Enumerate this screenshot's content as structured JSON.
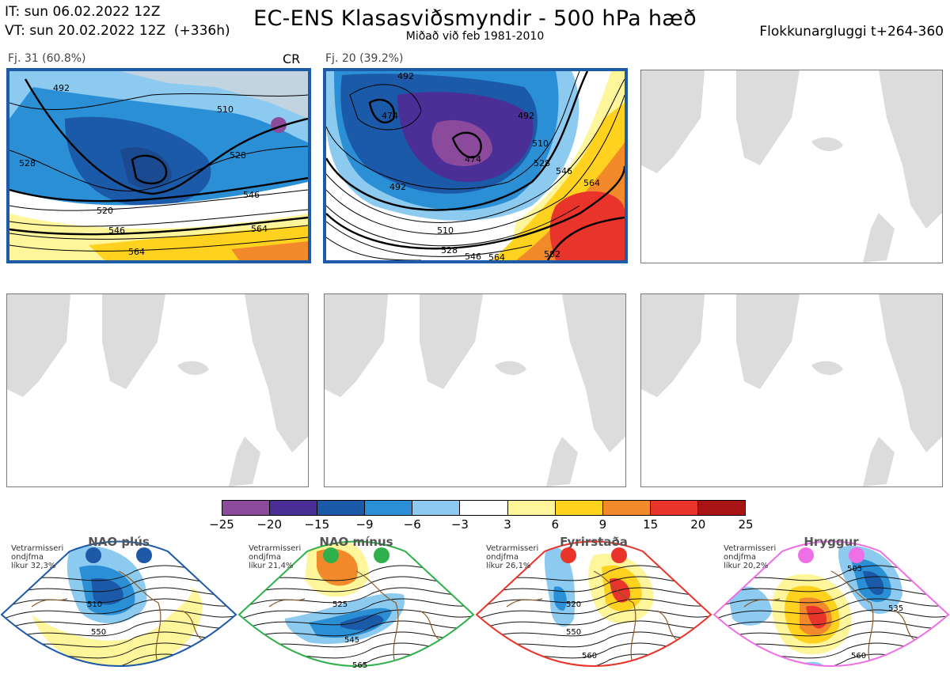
{
  "header": {
    "it": "IT: sun 06.02.2022 12Z",
    "vt": "VT: sun 20.02.2022 12Z  (+336h)",
    "title": "EC-ENS Klasasviðsmyndir - 500 hPa hæð",
    "subtitle": "Miðað við feb 1981-2010",
    "window": "Flokkunargluggi t+264-360"
  },
  "panels": [
    {
      "label": "Fj. 31 (60.8%)",
      "tag": "CR",
      "contours": [
        "492",
        "510",
        "528",
        "528",
        "546",
        "520",
        "546",
        "564",
        "564"
      ]
    },
    {
      "label": "Fj. 20 (39.2%)",
      "contours": [
        "474",
        "492",
        "492",
        "474",
        "510",
        "528",
        "546",
        "564",
        "492",
        "510",
        "528",
        "546",
        "564",
        "582"
      ]
    }
  ],
  "colorbar": {
    "colors": [
      "#8b4a9c",
      "#4b2e96",
      "#1b5aa8",
      "#2b8fd6",
      "#8ccaf0",
      "#ffffff",
      "#fff59a",
      "#ffd21f",
      "#f28a2c",
      "#e8342b",
      "#a81414"
    ],
    "ticks": [
      "−25",
      "−20",
      "−15",
      "−9",
      "−6",
      "−3",
      "3",
      "6",
      "9",
      "15",
      "20",
      "25"
    ]
  },
  "regimes": [
    {
      "title": "NAO plús",
      "note": "Vetrarmisseri\nondjfma\nlíkur 32,3%",
      "color": "#1d59a6",
      "contours": [
        "510",
        "550"
      ]
    },
    {
      "title": "NAO mínus",
      "note": "Vetrarmisseri\nondjfma\nlíkur 21,4%",
      "color": "#2fb04a",
      "contours": [
        "525",
        "545",
        "565"
      ]
    },
    {
      "title": "Fyrirstaða",
      "note": "Vetrarmisseri\nondjfma\nlíkur 26,1%",
      "color": "#e8342b",
      "contours": [
        "520",
        "550",
        "560"
      ]
    },
    {
      "title": "Hryggur",
      "note": "Vetrarmisseri\nondjfma\nlíkur 20,2%",
      "color": "#ee6fe6",
      "contours": [
        "505",
        "535",
        "560"
      ]
    }
  ]
}
